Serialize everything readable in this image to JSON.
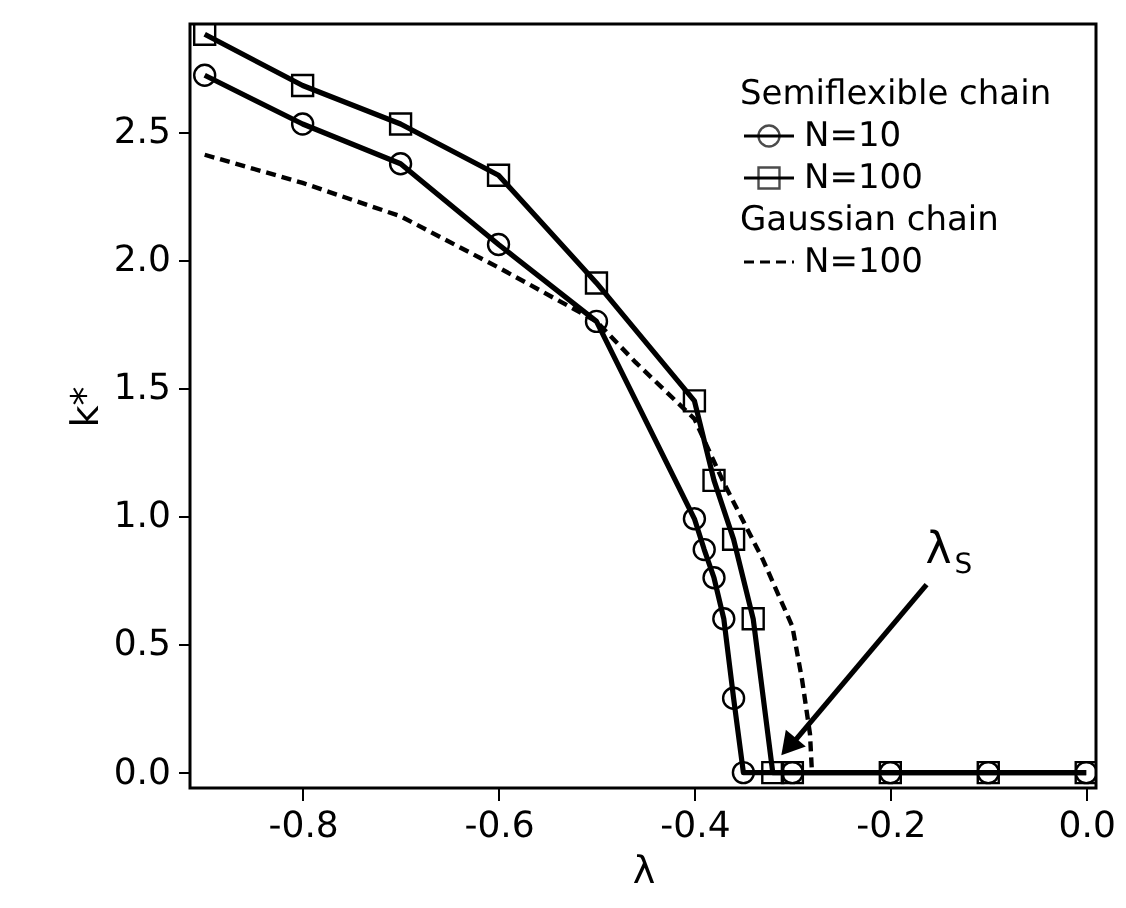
{
  "chart_data": {
    "type": "line",
    "xlabel": "λ",
    "ylabel": "k*",
    "legend_title": "Semiflexible chain",
    "xlim": [
      -0.915,
      0.01
    ],
    "ylim": [
      -0.06,
      2.92
    ],
    "xticks": [
      -0.8,
      -0.6,
      -0.4,
      -0.2,
      {
        "value": 0,
        "label": "0.0"
      }
    ],
    "yticks": [
      {
        "value": 0,
        "label": "0.0"
      },
      0.5,
      {
        "value": 1,
        "label": "1.0"
      },
      1.5,
      {
        "value": 2,
        "label": "2.0"
      },
      2.5
    ],
    "grid": false,
    "legend": "top right",
    "series": [
      {
        "name": "N=10",
        "color": "#000000",
        "marker": "circle",
        "line_style": "solid",
        "x": [
          -0.9,
          -0.8,
          -0.7,
          -0.6,
          -0.5,
          -0.4,
          -0.39,
          -0.38,
          -0.37,
          -0.36,
          -0.35,
          -0.3,
          -0.2,
          -0.1,
          0.0
        ],
        "values": [
          2.72,
          2.53,
          2.375,
          2.06,
          1.76,
          0.99,
          0.87,
          0.76,
          0.6,
          0.29,
          0,
          0,
          0,
          0,
          0
        ]
      },
      {
        "name": "N=100",
        "color": "#000000",
        "marker": "square",
        "line_style": "solid",
        "x": [
          -0.9,
          -0.8,
          -0.7,
          -0.6,
          -0.5,
          -0.4,
          -0.38,
          -0.36,
          -0.34,
          -0.32,
          -0.3,
          -0.2,
          -0.1,
          0.0
        ],
        "values": [
          2.88,
          2.68,
          2.53,
          2.33,
          1.91,
          1.45,
          1.14,
          0.91,
          0.6,
          0,
          0,
          0,
          0,
          0
        ]
      },
      {
        "name": "N=100",
        "color": "#000000",
        "marker": "none",
        "line_style": "dashed",
        "x": [
          -0.9,
          -0.8,
          -0.7,
          -0.6,
          -0.5,
          -0.46,
          -0.4,
          -0.37,
          -0.33,
          -0.3,
          -0.29,
          -0.282,
          -0.28
        ],
        "values": [
          2.41,
          2.3,
          2.17,
          1.97,
          1.76,
          1.6,
          1.38,
          1.13,
          0.83,
          0.57,
          0.36,
          0.15,
          0
        ]
      }
    ],
    "annotations": [
      "Gaussian chain",
      {
        "text": "λ$_{S}$",
        "x": -0.31,
        "y": 0.07
      }
    ]
  }
}
